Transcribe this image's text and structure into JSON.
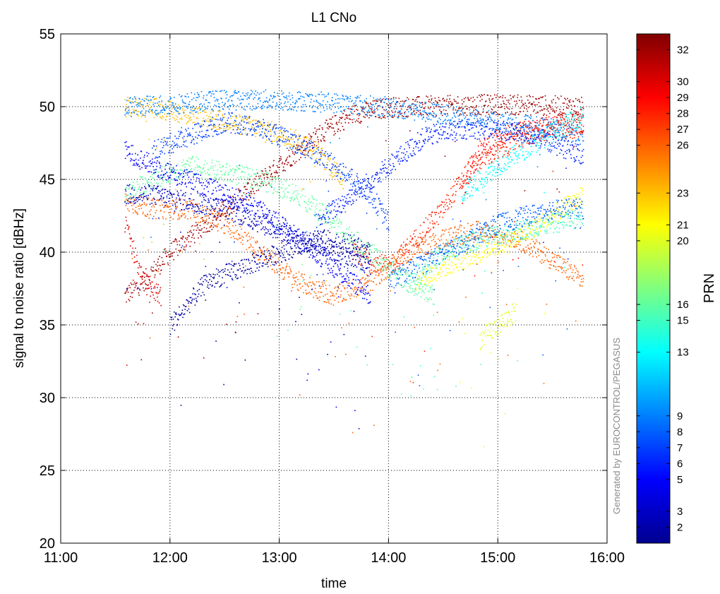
{
  "chart_data": {
    "type": "scatter",
    "title": "L1 CNo",
    "xlabel": "time",
    "ylabel": "signal to noise ratio  [dBHz]",
    "xlim": [
      "11:00",
      "16:00"
    ],
    "ylim": [
      20,
      55
    ],
    "x_ticks": [
      "11:00",
      "12:00",
      "13:00",
      "14:00",
      "15:00",
      "16:00"
    ],
    "y_ticks": [
      20,
      25,
      30,
      35,
      40,
      45,
      50,
      55
    ],
    "grid": true,
    "credit": "Generated by EUROCONTROL/PEGASUS",
    "colorbar": {
      "label": "PRN",
      "range": [
        1,
        33
      ],
      "ticks": [
        2,
        3,
        5,
        6,
        7,
        8,
        9,
        13,
        15,
        16,
        20,
        21,
        23,
        26,
        27,
        28,
        29,
        30,
        32
      ],
      "colormap": "jet"
    },
    "series": [
      {
        "prn": 32,
        "x": [
          "11:35",
          "11:45",
          "12:00",
          "12:20",
          "12:40",
          "13:00",
          "13:20",
          "13:40",
          "14:00",
          "14:30",
          "15:00",
          "15:30",
          "15:47"
        ],
        "y": [
          37,
          38,
          40,
          42,
          44,
          46,
          48,
          49.5,
          50,
          50.1,
          50.2,
          50.1,
          50
        ]
      },
      {
        "prn": 30,
        "x": [
          "11:35",
          "11:45",
          "11:55"
        ],
        "y": [
          42,
          38,
          37
        ]
      },
      {
        "prn": 29,
        "x": [
          "14:40",
          "14:50",
          "15:00",
          "15:20",
          "15:40",
          "15:47"
        ],
        "y": [
          44,
          47,
          48,
          48.5,
          49,
          48.8
        ]
      },
      {
        "prn": 28,
        "x": [
          "13:40",
          "14:00",
          "14:15",
          "14:30",
          "14:45",
          "15:00",
          "15:15",
          "15:30",
          "15:47"
        ],
        "y": [
          40,
          39,
          41,
          43,
          46,
          47,
          48,
          48.5,
          48.5
        ]
      },
      {
        "prn": 26,
        "x": [
          "11:35",
          "11:50",
          "12:10",
          "12:30",
          "12:50",
          "13:10",
          "13:30",
          "13:50",
          "14:10",
          "14:30",
          "14:50",
          "15:10",
          "15:30",
          "15:47"
        ],
        "y": [
          43.5,
          43,
          43,
          42,
          40,
          38,
          37,
          38,
          40,
          41,
          41.5,
          41,
          39.5,
          38
        ]
      },
      {
        "prn": 23,
        "x": [
          "11:35",
          "11:50",
          "12:10",
          "12:30",
          "12:50",
          "13:05",
          "13:20",
          "13:35"
        ],
        "y": [
          50,
          50,
          49.5,
          49,
          48.5,
          48,
          47,
          45
        ]
      },
      {
        "prn": 21,
        "x": [
          "14:15",
          "14:30",
          "14:50",
          "15:10",
          "15:30",
          "15:47"
        ],
        "y": [
          38,
          39,
          40,
          41,
          42.5,
          44
        ]
      },
      {
        "prn": 20,
        "x": [
          "14:50",
          "15:00",
          "15:10"
        ],
        "y": [
          34,
          35,
          36
        ]
      },
      {
        "prn": 16,
        "x": [
          "11:35",
          "11:50",
          "12:10",
          "12:30",
          "12:50",
          "13:10",
          "13:30",
          "13:50",
          "14:10",
          "14:25"
        ],
        "y": [
          44,
          45,
          46,
          45.5,
          45,
          44,
          42,
          40,
          38,
          37
        ]
      },
      {
        "prn": 15,
        "x": [
          "14:10",
          "14:30",
          "14:50",
          "15:10",
          "15:30",
          "15:47"
        ],
        "y": [
          38,
          40,
          41,
          41.5,
          42,
          42.5
        ]
      },
      {
        "prn": 13,
        "x": [
          "14:40",
          "15:00",
          "15:20",
          "15:40",
          "15:47"
        ],
        "y": [
          44,
          46,
          47.5,
          49,
          49.5
        ]
      },
      {
        "prn": 9,
        "x": [
          "11:35",
          "12:00",
          "12:30",
          "13:00",
          "13:30",
          "14:00",
          "14:30",
          "15:00",
          "15:30",
          "15:47"
        ],
        "y": [
          50,
          50.2,
          50.5,
          50.5,
          50.3,
          50,
          49.5,
          49,
          48.5,
          48
        ]
      },
      {
        "prn": 8,
        "x": [
          "14:00",
          "14:30",
          "15:00",
          "15:30",
          "15:47"
        ],
        "y": [
          38,
          40,
          42,
          43,
          43
        ]
      },
      {
        "prn": 7,
        "x": [
          "11:50",
          "12:10",
          "12:30",
          "12:50",
          "13:10",
          "13:30",
          "13:50",
          "14:00"
        ],
        "y": [
          47,
          48,
          49,
          48.5,
          47.5,
          46,
          44,
          42
        ]
      },
      {
        "prn": 6,
        "x": [
          "13:20",
          "13:40",
          "14:00",
          "14:20",
          "14:40",
          "15:00",
          "15:20",
          "15:40",
          "15:47"
        ],
        "y": [
          42,
          44,
          46,
          48,
          48.5,
          48.5,
          48,
          47,
          46.5
        ]
      },
      {
        "prn": 5,
        "x": [
          "11:35",
          "11:50",
          "12:10",
          "12:30",
          "12:50",
          "13:10",
          "13:30",
          "13:50"
        ],
        "y": [
          47,
          46,
          45,
          44,
          43,
          41,
          39,
          37
        ]
      },
      {
        "prn": 3,
        "x": [
          "11:35",
          "11:50",
          "12:10",
          "12:30",
          "12:50",
          "13:10",
          "13:30",
          "13:50"
        ],
        "y": [
          44,
          44,
          43.5,
          43,
          42,
          41,
          40,
          39
        ]
      },
      {
        "prn": 2,
        "x": [
          "12:00",
          "12:20",
          "12:40",
          "13:00",
          "13:20",
          "13:40",
          "13:50"
        ],
        "y": [
          35,
          38,
          39,
          40,
          41,
          40.5,
          40
        ]
      }
    ]
  }
}
